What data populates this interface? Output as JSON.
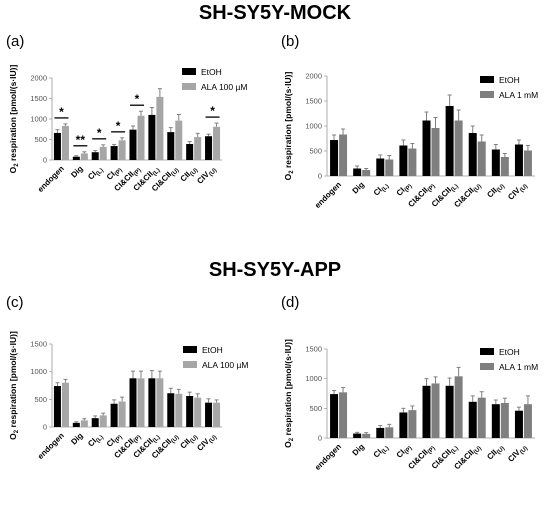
{
  "titles": {
    "mock": "SH-SY5Y-MOCK",
    "app": "SH-SY5Y-APP"
  },
  "colors": {
    "etoh": "#000000",
    "ala_light": "#a6a6a6",
    "ala_dark": "#7f7f7f",
    "error": "#808080"
  },
  "chart_data": [
    {
      "id": "a",
      "label": "(a)",
      "type": "bar",
      "ylabel": "O2 respiration [pmol/(s·IU)]",
      "ylim": [
        0,
        2000
      ],
      "yticks": [
        0,
        500,
        1000,
        1500,
        2000
      ],
      "categories": [
        "endogen",
        "Dig",
        "CI(L)",
        "CI(P)",
        "CI&CII(P)",
        "CI&CII(L)",
        "CI&CII(U)",
        "CII(U)",
        "CIV(U)"
      ],
      "series": [
        {
          "name": "EtOH",
          "color": "#000000",
          "values": [
            660,
            80,
            190,
            340,
            740,
            1100,
            680,
            390,
            580
          ],
          "errors": [
            80,
            25,
            40,
            40,
            90,
            180,
            110,
            60,
            50
          ]
        },
        {
          "name": "ALA 100 µM",
          "color": "#a6a6a6",
          "values": [
            830,
            160,
            320,
            480,
            1080,
            1540,
            960,
            560,
            810
          ],
          "errors": [
            50,
            40,
            50,
            60,
            110,
            200,
            150,
            90,
            90
          ]
        }
      ],
      "significance": [
        {
          "category": "endogen",
          "label": "*"
        },
        {
          "category": "Dig",
          "label": "**"
        },
        {
          "category": "CI(L)",
          "label": "*"
        },
        {
          "category": "CI(P)",
          "label": "*"
        },
        {
          "category": "CI&CII(P)",
          "label": "*"
        },
        {
          "category": "CIV(U)",
          "label": "*"
        }
      ],
      "legend": "top-right"
    },
    {
      "id": "b",
      "label": "(b)",
      "type": "bar",
      "ylabel": "O2 respiration [pmol/(s·IU)]",
      "ylim": [
        0,
        2000
      ],
      "yticks": [
        0,
        500,
        1000,
        1500,
        2000
      ],
      "categories": [
        "endogen",
        "Dig",
        "CI(L)",
        "CI(P)",
        "CI&CII(P)",
        "CI&CII(L)",
        "CI&CII(U)",
        "CII(U)",
        "CIV(U)"
      ],
      "series": [
        {
          "name": "EtOH",
          "color": "#000000",
          "values": [
            720,
            150,
            350,
            610,
            1110,
            1400,
            860,
            530,
            630
          ],
          "errors": [
            100,
            50,
            70,
            110,
            170,
            220,
            140,
            100,
            90
          ]
        },
        {
          "name": "ALA 1 mM",
          "color": "#7f7f7f",
          "values": [
            830,
            120,
            330,
            550,
            960,
            1110,
            690,
            380,
            510
          ],
          "errors": [
            110,
            30,
            80,
            100,
            210,
            210,
            130,
            70,
            100
          ]
        }
      ],
      "significance": [],
      "legend": "top-right"
    },
    {
      "id": "c",
      "label": "(c)",
      "type": "bar",
      "ylabel": "O2 respiration [pmol/(s·IU)]",
      "ylim": [
        0,
        1500
      ],
      "yticks": [
        0,
        500,
        1000,
        1500
      ],
      "categories": [
        "endogen",
        "Dig",
        "CI(L)",
        "CI(P)",
        "CI&CII(P)",
        "CI&CII(L)",
        "CI&CII(U)",
        "CII(U)",
        "CIV(U)"
      ],
      "series": [
        {
          "name": "EtOH",
          "color": "#000000",
          "values": [
            740,
            75,
            160,
            420,
            880,
            880,
            610,
            560,
            440
          ],
          "errors": [
            60,
            20,
            40,
            70,
            130,
            140,
            90,
            70,
            70
          ]
        },
        {
          "name": "ALA 100 µM",
          "color": "#a6a6a6",
          "values": [
            800,
            120,
            210,
            460,
            880,
            880,
            600,
            530,
            440
          ],
          "errors": [
            60,
            30,
            40,
            80,
            130,
            130,
            80,
            70,
            50
          ]
        }
      ],
      "significance": [],
      "legend": "top-right"
    },
    {
      "id": "d",
      "label": "(d)",
      "type": "bar",
      "ylabel": "O2 respiration [pmol/(s·IU)]",
      "ylim": [
        0,
        1500
      ],
      "yticks": [
        0,
        500,
        1000,
        1500
      ],
      "categories": [
        "endogen",
        "Dig",
        "CI(L)",
        "CI(P)",
        "CI&CII(P)",
        "CI&CII(L)",
        "CI&CII(U)",
        "CII(U)",
        "CIV(U)"
      ],
      "series": [
        {
          "name": "EtOH",
          "color": "#000000",
          "values": [
            740,
            75,
            170,
            430,
            880,
            880,
            610,
            570,
            460
          ],
          "errors": [
            60,
            20,
            40,
            70,
            120,
            130,
            100,
            70,
            60
          ]
        },
        {
          "name": "ALA 1 mM",
          "color": "#7f7f7f",
          "values": [
            770,
            70,
            180,
            470,
            920,
            1040,
            680,
            590,
            570
          ],
          "errors": [
            80,
            20,
            50,
            70,
            110,
            150,
            100,
            80,
            140
          ]
        }
      ],
      "significance": [],
      "legend": "top-right"
    }
  ]
}
